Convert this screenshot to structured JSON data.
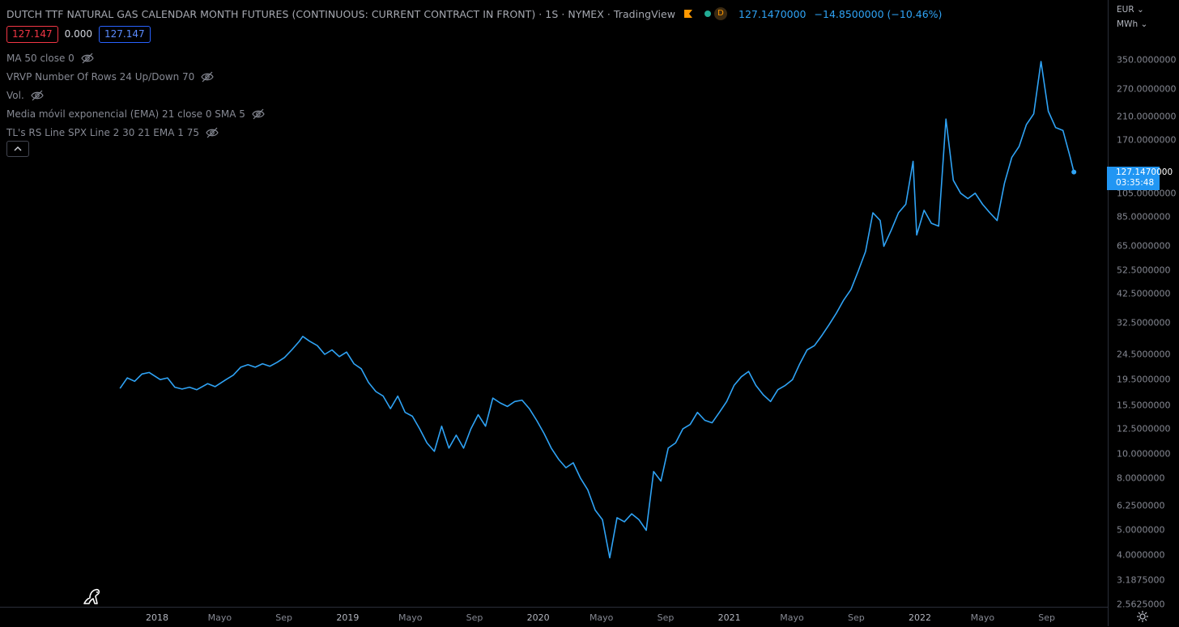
{
  "header": {
    "title": "DUTCH TTF NATURAL GAS CALENDAR MONTH FUTURES (CONTINUOUS: CURRENT CONTRACT IN FRONT) · 1S · NYMEX · TradingView",
    "status_letter": "D",
    "last_price": "127.1470000",
    "change": "−14.8500000 (−10.46%)",
    "colors": {
      "accent": "#2fa3f5",
      "flag": "#ff9800",
      "dot": "#22ab94"
    }
  },
  "price_boxes": {
    "bid": "127.147",
    "spread": "0.000",
    "ask": "127.147"
  },
  "indicators": [
    {
      "label": "MA 50 close 0",
      "icon": "eye-off-icon"
    },
    {
      "label": "VRVP Number Of Rows 24 Up/Down 70",
      "icon": "eye-off-icon"
    },
    {
      "label": "Vol.",
      "icon": "eye-off-icon"
    },
    {
      "label": "Media móvil exponencial (EMA) 21 close 0 SMA 5",
      "icon": "eye-off-icon"
    },
    {
      "label": "TL's RS Line SPX Line 2 30 21 EMA 1 75",
      "icon": "eye-off-icon"
    }
  ],
  "collapse_icon": "chevron-up-icon",
  "price_axis": {
    "currency": "EUR",
    "unit": "MWh",
    "last_label": {
      "price": "127.1470000",
      "countdown": "03:35:48"
    }
  },
  "chart_data": {
    "type": "line",
    "scale": "log",
    "grid": false,
    "line_color": "#2fa3f5",
    "yticks": [
      {
        "label": "350.0000000",
        "value": 350
      },
      {
        "label": "270.0000000",
        "value": 270
      },
      {
        "label": "210.0000000",
        "value": 210
      },
      {
        "label": "170.0000000",
        "value": 170
      },
      {
        "label": "105.0000000",
        "value": 105
      },
      {
        "label": "85.0000000",
        "value": 85
      },
      {
        "label": "65.0000000",
        "value": 65
      },
      {
        "label": "52.5000000",
        "value": 52.5
      },
      {
        "label": "42.5000000",
        "value": 42.5
      },
      {
        "label": "32.5000000",
        "value": 32.5
      },
      {
        "label": "24.5000000",
        "value": 24.5
      },
      {
        "label": "19.5000000",
        "value": 19.5
      },
      {
        "label": "15.5000000",
        "value": 15.5
      },
      {
        "label": "12.5000000",
        "value": 12.5
      },
      {
        "label": "10.0000000",
        "value": 10
      },
      {
        "label": "8.0000000",
        "value": 8
      },
      {
        "label": "6.2500000",
        "value": 6.25
      },
      {
        "label": "5.0000000",
        "value": 5
      },
      {
        "label": "4.0000000",
        "value": 4
      },
      {
        "label": "3.1875000",
        "value": 3.1875
      },
      {
        "label": "2.5625000",
        "value": 2.5625
      }
    ],
    "xticks": [
      {
        "label": "2018",
        "date": "2018-01-01",
        "year": true
      },
      {
        "label": "Mayo",
        "date": "2018-05-01",
        "year": false
      },
      {
        "label": "Sep",
        "date": "2018-09-01",
        "year": false
      },
      {
        "label": "2019",
        "date": "2019-01-01",
        "year": true
      },
      {
        "label": "Mayo",
        "date": "2019-05-01",
        "year": false
      },
      {
        "label": "Sep",
        "date": "2019-09-01",
        "year": false
      },
      {
        "label": "2020",
        "date": "2020-01-01",
        "year": true
      },
      {
        "label": "Mayo",
        "date": "2020-05-01",
        "year": false
      },
      {
        "label": "Sep",
        "date": "2020-09-01",
        "year": false
      },
      {
        "label": "2021",
        "date": "2021-01-01",
        "year": true
      },
      {
        "label": "Mayo",
        "date": "2021-05-01",
        "year": false
      },
      {
        "label": "Sep",
        "date": "2021-09-01",
        "year": false
      },
      {
        "label": "2022",
        "date": "2022-01-01",
        "year": true
      },
      {
        "label": "Mayo",
        "date": "2022-05-01",
        "year": false
      },
      {
        "label": "Sep",
        "date": "2022-09-01",
        "year": false
      }
    ],
    "x_range": [
      "2017-10-01",
      "2022-11-15"
    ],
    "y_range": [
      2.5625,
      425
    ],
    "series": [
      {
        "points": [
          [
            "2017-10-22",
            18.0
          ],
          [
            "2017-11-05",
            19.8
          ],
          [
            "2017-11-19",
            19.2
          ],
          [
            "2017-12-03",
            20.5
          ],
          [
            "2017-12-17",
            20.8
          ],
          [
            "2018-01-07",
            19.5
          ],
          [
            "2018-01-21",
            19.8
          ],
          [
            "2018-02-04",
            18.2
          ],
          [
            "2018-02-18",
            17.9
          ],
          [
            "2018-03-04",
            18.2
          ],
          [
            "2018-03-18",
            17.8
          ],
          [
            "2018-04-08",
            18.8
          ],
          [
            "2018-04-22",
            18.3
          ],
          [
            "2018-05-13",
            19.5
          ],
          [
            "2018-05-27",
            20.3
          ],
          [
            "2018-06-10",
            21.8
          ],
          [
            "2018-06-24",
            22.3
          ],
          [
            "2018-07-08",
            21.8
          ],
          [
            "2018-07-22",
            22.5
          ],
          [
            "2018-08-05",
            22.0
          ],
          [
            "2018-08-19",
            22.8
          ],
          [
            "2018-09-02",
            23.8
          ],
          [
            "2018-09-16",
            25.5
          ],
          [
            "2018-09-30",
            27.5
          ],
          [
            "2018-10-07",
            28.8
          ],
          [
            "2018-10-21",
            27.5
          ],
          [
            "2018-11-04",
            26.5
          ],
          [
            "2018-11-18",
            24.5
          ],
          [
            "2018-12-02",
            25.5
          ],
          [
            "2018-12-16",
            24.0
          ],
          [
            "2018-12-30",
            25.0
          ],
          [
            "2019-01-13",
            22.5
          ],
          [
            "2019-01-27",
            21.5
          ],
          [
            "2019-02-10",
            19.0
          ],
          [
            "2019-02-24",
            17.5
          ],
          [
            "2019-03-10",
            16.8
          ],
          [
            "2019-03-24",
            15.0
          ],
          [
            "2019-04-07",
            16.8
          ],
          [
            "2019-04-21",
            14.5
          ],
          [
            "2019-05-05",
            14.0
          ],
          [
            "2019-05-19",
            12.5
          ],
          [
            "2019-06-02",
            11.0
          ],
          [
            "2019-06-16",
            10.2
          ],
          [
            "2019-06-30",
            12.8
          ],
          [
            "2019-07-14",
            10.5
          ],
          [
            "2019-07-28",
            11.8
          ],
          [
            "2019-08-11",
            10.5
          ],
          [
            "2019-08-25",
            12.5
          ],
          [
            "2019-09-08",
            14.2
          ],
          [
            "2019-09-22",
            12.8
          ],
          [
            "2019-10-06",
            16.5
          ],
          [
            "2019-10-20",
            15.8
          ],
          [
            "2019-11-03",
            15.3
          ],
          [
            "2019-11-17",
            16.0
          ],
          [
            "2019-12-01",
            16.2
          ],
          [
            "2019-12-15",
            15.0
          ],
          [
            "2019-12-29",
            13.5
          ],
          [
            "2020-01-12",
            12.0
          ],
          [
            "2020-01-26",
            10.5
          ],
          [
            "2020-02-09",
            9.5
          ],
          [
            "2020-02-23",
            8.8
          ],
          [
            "2020-03-08",
            9.2
          ],
          [
            "2020-03-22",
            8.0
          ],
          [
            "2020-04-05",
            7.2
          ],
          [
            "2020-04-19",
            6.0
          ],
          [
            "2020-05-03",
            5.5
          ],
          [
            "2020-05-17",
            3.9
          ],
          [
            "2020-05-31",
            5.6
          ],
          [
            "2020-06-14",
            5.4
          ],
          [
            "2020-06-28",
            5.8
          ],
          [
            "2020-07-12",
            5.5
          ],
          [
            "2020-07-26",
            5.0
          ],
          [
            "2020-08-09",
            8.5
          ],
          [
            "2020-08-23",
            7.8
          ],
          [
            "2020-09-06",
            10.5
          ],
          [
            "2020-09-20",
            11.0
          ],
          [
            "2020-10-04",
            12.5
          ],
          [
            "2020-10-18",
            13.0
          ],
          [
            "2020-11-01",
            14.5
          ],
          [
            "2020-11-15",
            13.5
          ],
          [
            "2020-11-29",
            13.2
          ],
          [
            "2020-12-13",
            14.5
          ],
          [
            "2020-12-27",
            16.0
          ],
          [
            "2021-01-10",
            18.5
          ],
          [
            "2021-01-24",
            20.0
          ],
          [
            "2021-02-07",
            21.0
          ],
          [
            "2021-02-21",
            18.5
          ],
          [
            "2021-03-07",
            17.0
          ],
          [
            "2021-03-21",
            16.0
          ],
          [
            "2021-04-04",
            17.8
          ],
          [
            "2021-04-18",
            18.5
          ],
          [
            "2021-05-02",
            19.5
          ],
          [
            "2021-05-16",
            22.5
          ],
          [
            "2021-05-30",
            25.5
          ],
          [
            "2021-06-13",
            26.5
          ],
          [
            "2021-06-27",
            29.0
          ],
          [
            "2021-07-11",
            32.0
          ],
          [
            "2021-07-25",
            35.5
          ],
          [
            "2021-08-08",
            40.0
          ],
          [
            "2021-08-22",
            44.0
          ],
          [
            "2021-09-05",
            52.0
          ],
          [
            "2021-09-19",
            62.0
          ],
          [
            "2021-10-03",
            88.0
          ],
          [
            "2021-10-17",
            82.0
          ],
          [
            "2021-10-24",
            65.0
          ],
          [
            "2021-11-07",
            75.0
          ],
          [
            "2021-11-21",
            88.0
          ],
          [
            "2021-12-05",
            95.0
          ],
          [
            "2021-12-19",
            140.0
          ],
          [
            "2021-12-26",
            72.0
          ],
          [
            "2022-01-09",
            90.0
          ],
          [
            "2022-01-23",
            80.0
          ],
          [
            "2022-02-06",
            78.0
          ],
          [
            "2022-02-20",
            205.0
          ],
          [
            "2022-03-06",
            118.0
          ],
          [
            "2022-03-20",
            105.0
          ],
          [
            "2022-04-03",
            100.0
          ],
          [
            "2022-04-17",
            105.0
          ],
          [
            "2022-05-01",
            95.0
          ],
          [
            "2022-05-15",
            88.0
          ],
          [
            "2022-05-29",
            82.0
          ],
          [
            "2022-06-12",
            115.0
          ],
          [
            "2022-06-26",
            145.0
          ],
          [
            "2022-07-10",
            160.0
          ],
          [
            "2022-07-24",
            195.0
          ],
          [
            "2022-08-07",
            215.0
          ],
          [
            "2022-08-21",
            345.0
          ],
          [
            "2022-09-04",
            220.0
          ],
          [
            "2022-09-18",
            190.0
          ],
          [
            "2022-10-02",
            185.0
          ],
          [
            "2022-10-16",
            145.0
          ],
          [
            "2022-10-23",
            127.147
          ]
        ]
      }
    ]
  }
}
